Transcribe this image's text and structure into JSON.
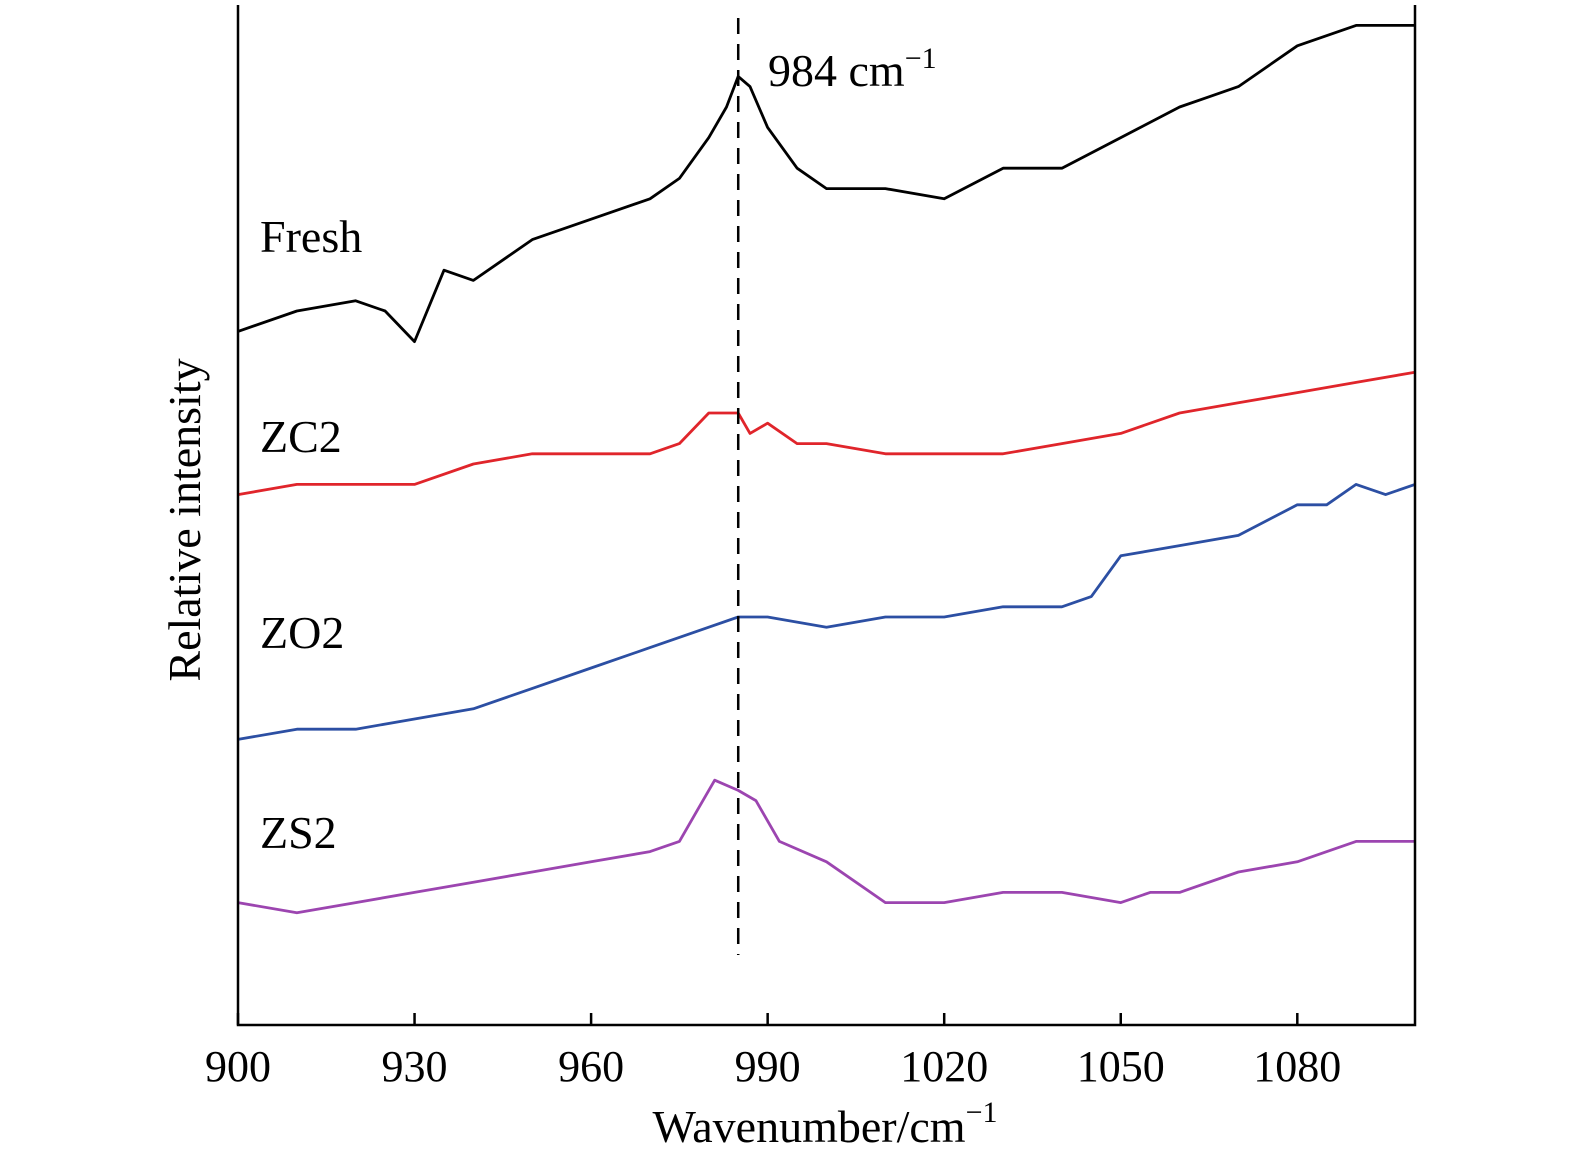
{
  "chart_data": {
    "type": "line",
    "xlabel": "Wavenumber/cm",
    "xlabel_sup": "−1",
    "ylabel": "Relative intensity",
    "xlim": [
      900,
      1100
    ],
    "ylim": [
      0,
      100
    ],
    "x_ticks": [
      900,
      930,
      960,
      990,
      1020,
      1050,
      1080
    ],
    "y_ticks_shown": false,
    "reference_line": {
      "x": 985,
      "style": "dashed",
      "color": "#000000"
    },
    "annotation": {
      "text": "984 cm",
      "sup": "−1"
    },
    "series": [
      {
        "name": "Fresh",
        "color": "#000000",
        "x": [
          900,
          910,
          920,
          925,
          930,
          935,
          940,
          950,
          960,
          970,
          975,
          980,
          983,
          985,
          987,
          990,
          995,
          1000,
          1010,
          1020,
          1030,
          1040,
          1050,
          1060,
          1065,
          1070,
          1080,
          1090,
          1100
        ],
        "values": [
          68,
          70,
          71,
          70,
          67,
          74,
          73,
          77,
          79,
          81,
          83,
          87,
          90,
          93,
          92,
          88,
          84,
          82,
          82,
          81,
          84,
          84,
          87,
          90,
          91,
          92,
          96,
          98,
          98
        ]
      },
      {
        "name": "ZC2",
        "color": "#e0252b",
        "x": [
          900,
          910,
          920,
          930,
          940,
          950,
          960,
          970,
          975,
          980,
          985,
          987,
          990,
          995,
          1000,
          1010,
          1020,
          1030,
          1040,
          1050,
          1060,
          1070,
          1080,
          1090,
          1100
        ],
        "values": [
          52,
          53,
          53,
          53,
          55,
          56,
          56,
          56,
          57,
          60,
          60,
          58,
          59,
          57,
          57,
          56,
          56,
          56,
          57,
          58,
          60,
          61,
          62,
          63,
          64
        ]
      },
      {
        "name": "ZO2",
        "color": "#2c4fa3",
        "x": [
          900,
          910,
          920,
          930,
          940,
          950,
          960,
          970,
          980,
          985,
          990,
          1000,
          1010,
          1020,
          1030,
          1040,
          1045,
          1050,
          1060,
          1070,
          1080,
          1085,
          1090,
          1095,
          1100
        ],
        "values": [
          28,
          29,
          29,
          30,
          31,
          33,
          35,
          37,
          39,
          40,
          40,
          39,
          40,
          40,
          41,
          41,
          42,
          46,
          47,
          48,
          51,
          51,
          53,
          52,
          53
        ]
      },
      {
        "name": "ZS2",
        "color": "#9c45b0",
        "x": [
          900,
          910,
          920,
          930,
          940,
          950,
          960,
          970,
          975,
          978,
          981,
          985,
          988,
          992,
          1000,
          1010,
          1020,
          1030,
          1040,
          1050,
          1055,
          1060,
          1070,
          1080,
          1090,
          1100
        ],
        "values": [
          12,
          11,
          12,
          13,
          14,
          15,
          16,
          17,
          18,
          21,
          24,
          23,
          22,
          18,
          16,
          12,
          12,
          13,
          13,
          12,
          13,
          13,
          15,
          16,
          18,
          18
        ]
      }
    ]
  }
}
